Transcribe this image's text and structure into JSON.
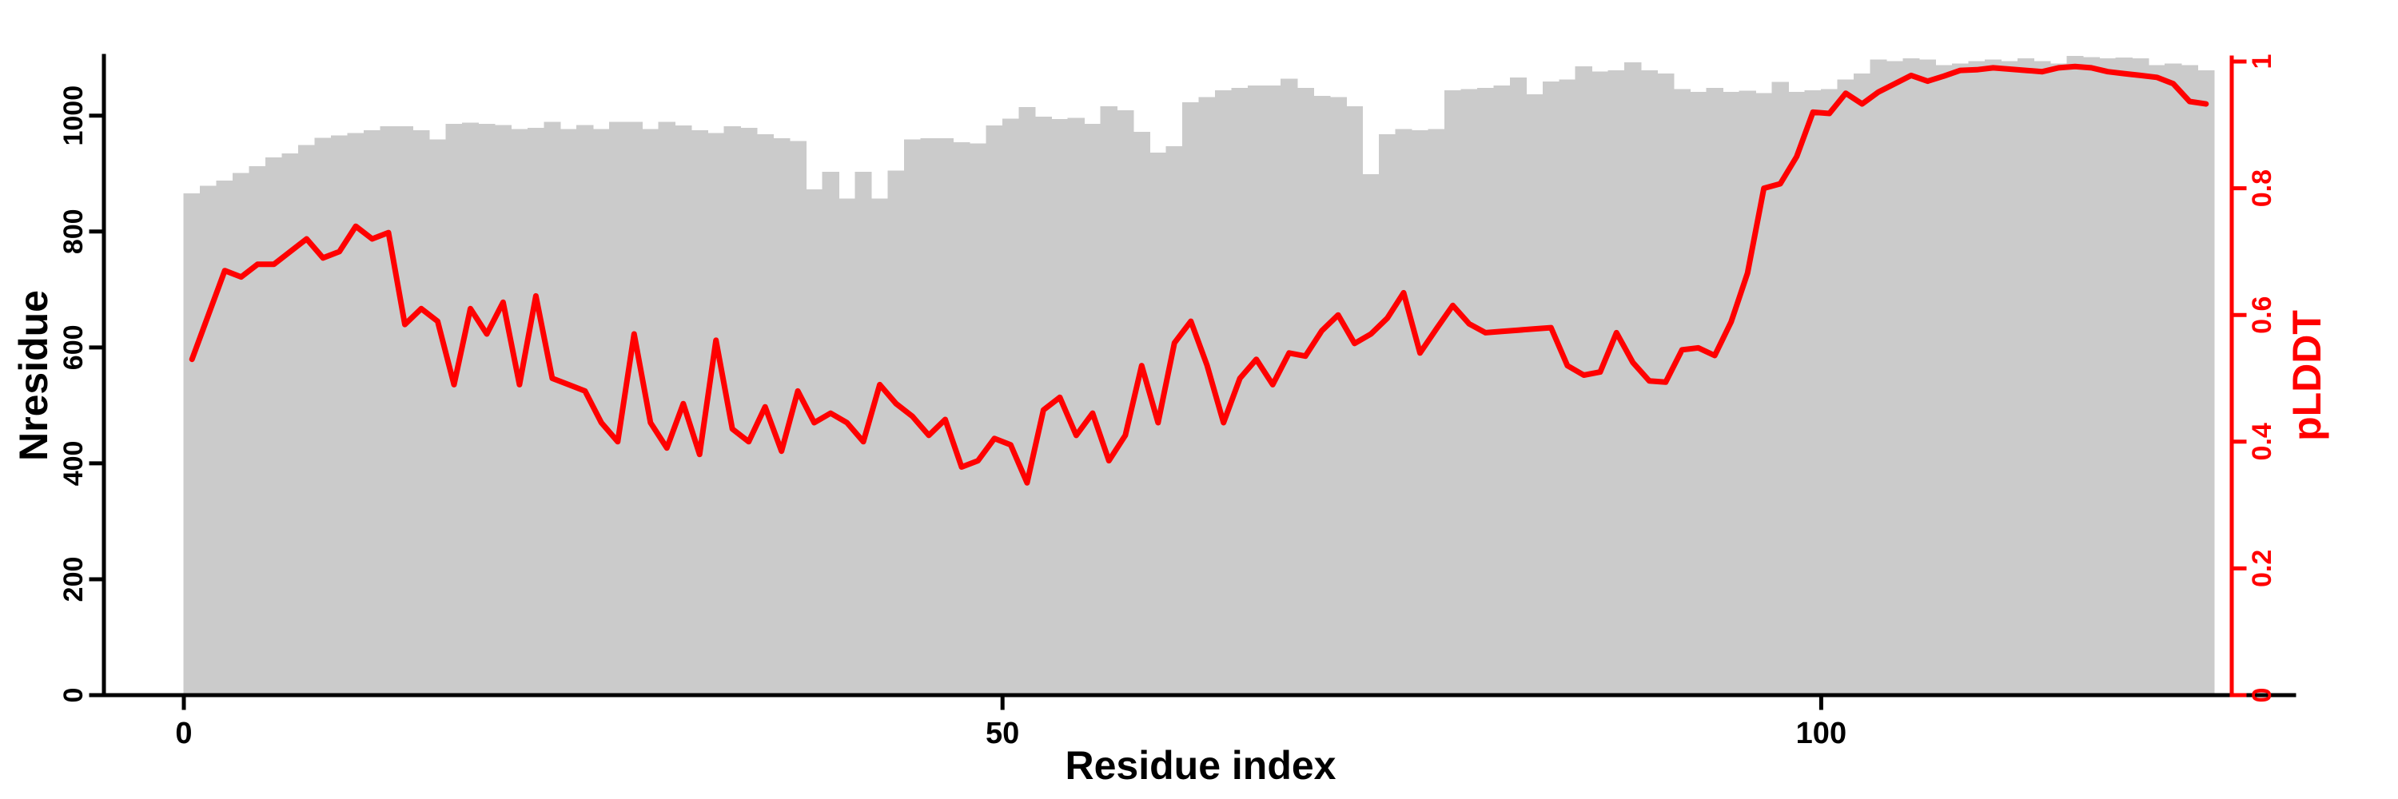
{
  "figure": {
    "background_color": "#ffffff",
    "title": "",
    "legend": "none"
  },
  "chart_data": {
    "type": "bar",
    "title": "",
    "xlabel": "Residue index",
    "ylabel_left": "Nresidue",
    "ylabel_right": "pLDDT",
    "n_residues": 124,
    "x_first_residue": 1,
    "grid": false,
    "legend_position": "none",
    "axes": {
      "x": {
        "label": "Residue index",
        "ticks": [
          0,
          50,
          100
        ],
        "tick_labels": [
          "0",
          "50",
          "100"
        ],
        "range": [
          0,
          124
        ],
        "color": "#000000"
      },
      "y_left": {
        "label": "Nresidue",
        "ticks": [
          0,
          200,
          400,
          600,
          800,
          1000
        ],
        "tick_labels": [
          "0",
          "200",
          "400",
          "600",
          "800",
          "1000"
        ],
        "range": [
          0,
          1103
        ],
        "color": "#000000",
        "tick_label_rotation_deg": -90
      },
      "y_right": {
        "label": "pLDDT",
        "ticks": [
          0,
          0.2,
          0.4,
          0.6,
          0.8,
          1
        ],
        "tick_labels": [
          "0",
          "0.2",
          "0.4",
          "0.6",
          "0.8",
          "1"
        ],
        "range": [
          0,
          1
        ],
        "color": "#ff0000",
        "tick_label_rotation_deg": -90
      }
    },
    "series": [
      {
        "name": "Nresidue",
        "render_as": "bar",
        "yaxis": "left",
        "color": "#cbcbcb",
        "values": [
          866,
          879,
          888,
          901,
          913,
          928,
          935,
          949,
          962,
          966,
          970,
          975,
          982,
          982,
          975,
          959,
          986,
          988,
          986,
          984,
          977,
          979,
          989,
          977,
          984,
          977,
          989,
          989,
          977,
          989,
          983,
          975,
          970,
          982,
          979,
          968,
          961,
          956,
          873,
          903,
          857,
          903,
          857,
          905,
          959,
          961,
          961,
          954,
          952,
          983,
          995,
          1015,
          998,
          994,
          996,
          986,
          1016,
          1009,
          972,
          936,
          947,
          1023,
          1032,
          1044,
          1048,
          1052,
          1052,
          1064,
          1048,
          1034,
          1032,
          1016,
          899,
          968,
          977,
          975,
          977,
          1044,
          1046,
          1048,
          1052,
          1066,
          1037,
          1059,
          1062,
          1085,
          1076,
          1078,
          1092,
          1078,
          1073,
          1046,
          1041,
          1048,
          1041,
          1043,
          1039,
          1058,
          1041,
          1044,
          1046,
          1062,
          1073,
          1097,
          1094,
          1099,
          1097,
          1087,
          1090,
          1094,
          1097,
          1094,
          1099,
          1094,
          1090,
          1103,
          1101,
          1099,
          1100,
          1099,
          1087,
          1090,
          1087,
          1078
        ]
      },
      {
        "name": "pLDDT",
        "render_as": "line",
        "yaxis": "right",
        "color": "#ff0000",
        "line_width": 7,
        "values": [
          0.53,
          0.6,
          0.67,
          0.66,
          0.68,
          0.68,
          0.7,
          0.72,
          0.69,
          0.7,
          0.74,
          0.72,
          0.73,
          0.585,
          0.61,
          0.59,
          0.49,
          0.61,
          0.57,
          0.62,
          0.49,
          0.63,
          0.5,
          0.49,
          0.48,
          0.43,
          0.4,
          0.57,
          0.43,
          0.39,
          0.46,
          0.38,
          0.56,
          0.42,
          0.4,
          0.455,
          0.385,
          0.48,
          0.43,
          0.445,
          0.43,
          0.4,
          0.49,
          0.46,
          0.44,
          0.41,
          0.435,
          0.36,
          0.37,
          0.405,
          0.395,
          0.335,
          0.45,
          0.47,
          0.41,
          0.445,
          0.37,
          0.41,
          0.52,
          0.43,
          0.556,
          0.59,
          0.52,
          0.43,
          0.5,
          0.53,
          0.49,
          0.54,
          0.535,
          0.575,
          0.6,
          0.555,
          0.57,
          0.595,
          0.635,
          0.54,
          0.578,
          0.615,
          0.586,
          0.572,
          0.574,
          0.576,
          0.578,
          0.58,
          0.52,
          0.505,
          0.51,
          0.572,
          0.525,
          0.496,
          0.494,
          0.545,
          0.548,
          0.536,
          0.589,
          0.666,
          0.8,
          0.807,
          0.85,
          0.92,
          0.918,
          0.95,
          0.933,
          0.952,
          0.965,
          0.978,
          0.969,
          0.977,
          0.986,
          0.987,
          0.99,
          0.988,
          0.986,
          0.984,
          0.99,
          0.992,
          0.99,
          0.984,
          0.981,
          0.978,
          0.975,
          0.965,
          0.937,
          0.933
        ]
      }
    ]
  }
}
